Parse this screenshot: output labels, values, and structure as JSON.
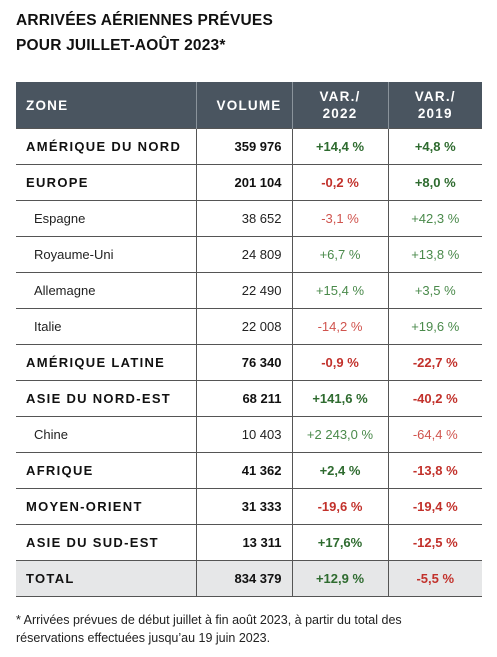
{
  "title": {
    "line1": "ARRIVÉES AÉRIENNES PRÉVUES",
    "line2": "POUR JUILLET-AOÛT 2023*"
  },
  "table": {
    "headers": {
      "zone": "ZONE",
      "volume": "VOLUME",
      "var2022_line1": "VAR./",
      "var2022_line2": "2022",
      "var2019_line1": "VAR./",
      "var2019_line2": "2019"
    },
    "rows": [
      {
        "name": "AMÉRIQUE DU NORD",
        "volume": "359 976",
        "var2022": "+14,4 %",
        "var2019": "+4,8 %"
      },
      {
        "name": "EUROPE",
        "volume": "201 104",
        "var2022": "-0,2 %",
        "var2019": "+8,0 %"
      },
      {
        "name": "Espagne",
        "volume": "38 652",
        "var2022": "-3,1 %",
        "var2019": "+42,3 %"
      },
      {
        "name": "Royaume-Uni",
        "volume": "24 809",
        "var2022": "+6,7 %",
        "var2019": "+13,8 %"
      },
      {
        "name": "Allemagne",
        "volume": "22 490",
        "var2022": "+15,4 %",
        "var2019": "+3,5 %"
      },
      {
        "name": "Italie",
        "volume": "22 008",
        "var2022": "-14,2 %",
        "var2019": "+19,6 %"
      },
      {
        "name": "AMÉRIQUE LATINE",
        "volume": "76 340",
        "var2022": "-0,9 %",
        "var2019": "-22,7 %"
      },
      {
        "name": "ASIE DU NORD-EST",
        "volume": "68 211",
        "var2022": "+141,6 %",
        "var2019": "-40,2 %"
      },
      {
        "name": "Chine",
        "volume": "10 403",
        "var2022": "+2 243,0 %",
        "var2019": "-64,4 %"
      },
      {
        "name": "AFRIQUE",
        "volume": "41 362",
        "var2022": "+2,4 %",
        "var2019": "-13,8 %"
      },
      {
        "name": "MOYEN-ORIENT",
        "volume": "31 333",
        "var2022": "-19,6 %",
        "var2019": "-19,4 %"
      },
      {
        "name": "ASIE DU SUD-EST",
        "volume": "13 311",
        "var2022": "+17,6%",
        "var2019": "-12,5 %"
      },
      {
        "name": "TOTAL",
        "volume": "834 379",
        "var2022": "+12,9 %",
        "var2019": "-5,5 %"
      }
    ]
  },
  "footnote": {
    "line1": "* Arrivées prévues de début juillet à fin août 2023, à partir du total des",
    "line2": "réservations effectuées jusqu’au 19 juin 2023."
  },
  "colors": {
    "header_bg": "#4a5560",
    "positive": "#2e6b2f",
    "negative": "#c2312b",
    "total_bg": "#e6e7e8"
  }
}
